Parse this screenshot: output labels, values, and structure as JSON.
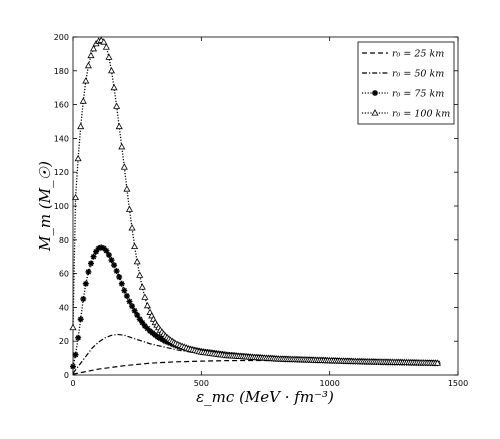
{
  "chart_data": {
    "type": "line",
    "title": "",
    "xlabel": "ε_mc (MeV · fm⁻³)",
    "ylabel": "M_m (M_☉)",
    "xlim": [
      0,
      1500
    ],
    "ylim": [
      0,
      200
    ],
    "xticks": [
      0,
      500,
      1000,
      1500
    ],
    "yticks": [
      0,
      20,
      40,
      60,
      80,
      100,
      120,
      140,
      160,
      180,
      200
    ],
    "grid": false,
    "legend_position": "top-right",
    "series": [
      {
        "name": "r₀ = 25  km",
        "style": "dashed",
        "marker": "none",
        "x": [
          0,
          50,
          100,
          200,
          300,
          400,
          500,
          600,
          700,
          800,
          900,
          1000,
          1100,
          1200,
          1300,
          1420
        ],
        "y": [
          0.5,
          2,
          3.5,
          5.5,
          7,
          7.8,
          8.2,
          8.5,
          8.6,
          8.5,
          8.3,
          8.1,
          7.9,
          7.7,
          7.5,
          7.3
        ]
      },
      {
        "name": "r₀ = 50  km",
        "style": "dashdot",
        "marker": "none",
        "x": [
          0,
          25,
          50,
          75,
          100,
          125,
          150,
          175,
          200,
          250,
          300,
          400,
          500,
          600,
          800,
          1000,
          1200,
          1420
        ],
        "y": [
          1,
          6,
          11,
          16,
          19.5,
          22,
          23.5,
          24,
          23.5,
          21,
          18.5,
          15,
          12.5,
          11,
          9.5,
          8.5,
          7.8,
          7.2
        ]
      },
      {
        "name": "r₀ = 75  km",
        "style": "dotted",
        "marker": "star",
        "x": [
          0,
          10,
          20,
          30,
          40,
          50,
          60,
          70,
          80,
          90,
          100,
          110,
          120,
          130,
          140,
          150,
          160,
          170,
          180,
          190,
          200,
          220,
          240,
          260,
          280,
          300,
          330,
          360,
          400,
          450,
          500,
          550,
          600,
          700,
          800,
          900,
          1000,
          1100,
          1200,
          1300,
          1420
        ],
        "y": [
          5,
          12,
          22,
          33,
          45,
          54,
          61,
          66,
          70,
          73,
          75,
          75.5,
          75,
          73.5,
          71,
          68,
          65,
          61.5,
          58,
          54,
          50,
          43.5,
          38,
          33,
          29,
          26,
          22.5,
          20,
          17.5,
          15.5,
          14,
          13,
          12,
          10.5,
          9.5,
          9,
          8.5,
          8,
          7.6,
          7.3,
          7
        ]
      },
      {
        "name": "r₀ = 100  km",
        "style": "dotted",
        "marker": "triangle",
        "x": [
          0,
          10,
          20,
          30,
          40,
          50,
          60,
          70,
          80,
          90,
          100,
          110,
          120,
          130,
          140,
          150,
          160,
          170,
          180,
          190,
          200,
          210,
          220,
          230,
          240,
          250,
          260,
          270,
          280,
          290,
          300,
          320,
          340,
          360,
          380,
          400,
          450,
          500,
          550,
          600,
          700,
          800,
          900,
          1000,
          1100,
          1200,
          1300,
          1420
        ],
        "y": [
          28,
          105,
          128,
          147,
          162,
          174,
          183,
          189,
          193,
          196,
          197.5,
          198,
          197,
          194,
          188,
          180,
          170,
          159,
          147,
          135,
          123,
          110,
          98,
          87,
          76,
          67,
          59,
          52,
          46,
          41,
          37,
          31,
          26.5,
          23,
          20.5,
          18.5,
          15.5,
          13.5,
          12.5,
          11.5,
          10.5,
          9.5,
          9,
          8.5,
          8,
          7.7,
          7.4,
          7
        ]
      }
    ]
  }
}
